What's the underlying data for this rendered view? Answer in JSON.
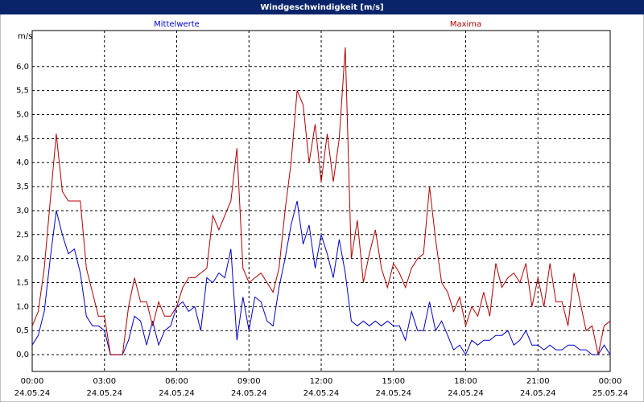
{
  "chart_data": {
    "type": "line",
    "title": "Windgeschwindigkeit [m/s]",
    "y_label": "m/s",
    "x": [
      0,
      0.25,
      0.5,
      0.75,
      1,
      1.25,
      1.5,
      1.75,
      2,
      2.25,
      2.5,
      2.75,
      3,
      3.25,
      3.5,
      3.75,
      4,
      4.25,
      4.5,
      4.75,
      5,
      5.25,
      5.5,
      5.75,
      6,
      6.25,
      6.5,
      6.75,
      7,
      7.25,
      7.5,
      7.75,
      8,
      8.25,
      8.5,
      8.75,
      9,
      9.25,
      9.5,
      9.75,
      10,
      10.25,
      10.5,
      10.75,
      11,
      11.25,
      11.5,
      11.75,
      12,
      12.25,
      12.5,
      12.75,
      13,
      13.25,
      13.5,
      13.75,
      14,
      14.25,
      14.5,
      14.75,
      15,
      15.25,
      15.5,
      15.75,
      16,
      16.25,
      16.5,
      16.75,
      17,
      17.25,
      17.5,
      17.75,
      18,
      18.25,
      18.5,
      18.75,
      19,
      19.25,
      19.5,
      19.75,
      20,
      20.25,
      20.5,
      20.75,
      21,
      21.25,
      21.5,
      21.75,
      22,
      22.25,
      22.5,
      22.75,
      23,
      23.25,
      23.5,
      23.75,
      24
    ],
    "series": [
      {
        "name": "Mittelwerte",
        "color": "#0000cc",
        "values": [
          0.2,
          0.4,
          0.9,
          2.0,
          3.0,
          2.5,
          2.1,
          2.2,
          1.7,
          0.8,
          0.6,
          0.6,
          0.5,
          0.0,
          0.0,
          0.0,
          0.3,
          0.8,
          0.7,
          0.2,
          0.7,
          0.2,
          0.5,
          0.6,
          1.0,
          1.1,
          0.9,
          1.0,
          0.5,
          1.6,
          1.5,
          1.7,
          1.6,
          2.2,
          0.3,
          1.2,
          0.5,
          1.2,
          1.1,
          0.7,
          0.6,
          1.4,
          2.0,
          2.7,
          3.2,
          2.3,
          2.7,
          1.8,
          2.5,
          2.1,
          1.6,
          2.4,
          1.7,
          0.7,
          0.6,
          0.7,
          0.6,
          0.7,
          0.6,
          0.7,
          0.6,
          0.6,
          0.3,
          0.9,
          0.5,
          0.5,
          1.1,
          0.5,
          0.7,
          0.4,
          0.1,
          0.2,
          0.0,
          0.3,
          0.2,
          0.3,
          0.3,
          0.4,
          0.4,
          0.5,
          0.2,
          0.3,
          0.5,
          0.2,
          0.2,
          0.1,
          0.2,
          0.1,
          0.1,
          0.2,
          0.2,
          0.1,
          0.1,
          0.0,
          0.0,
          0.2,
          0.0
        ]
      },
      {
        "name": "Maxima",
        "color": "#b00000",
        "values": [
          0.6,
          0.9,
          1.8,
          3.2,
          4.6,
          3.4,
          3.2,
          3.2,
          3.2,
          1.8,
          1.3,
          0.8,
          0.8,
          0.0,
          0.0,
          0.0,
          1.0,
          1.6,
          1.1,
          1.1,
          0.6,
          1.1,
          0.8,
          0.8,
          1.0,
          1.4,
          1.6,
          1.6,
          1.7,
          1.8,
          2.9,
          2.6,
          2.9,
          3.2,
          4.3,
          1.8,
          1.5,
          1.6,
          1.7,
          1.5,
          1.3,
          1.8,
          3.0,
          4.0,
          5.5,
          5.2,
          4.0,
          4.8,
          3.6,
          4.6,
          3.6,
          4.5,
          6.4,
          2.0,
          2.8,
          1.5,
          2.1,
          2.6,
          1.8,
          1.4,
          1.9,
          1.7,
          1.4,
          1.8,
          2.0,
          2.1,
          3.5,
          2.4,
          1.5,
          1.3,
          0.9,
          1.2,
          0.6,
          1.0,
          0.8,
          1.3,
          0.8,
          1.9,
          1.4,
          1.6,
          1.7,
          1.5,
          1.9,
          1.0,
          1.6,
          1.0,
          1.9,
          1.1,
          1.1,
          0.6,
          1.7,
          1.1,
          0.5,
          0.6,
          0.0,
          0.6,
          0.7
        ]
      }
    ],
    "xlim": [
      0,
      24
    ],
    "xticks": [
      {
        "value": 0,
        "label": "00:00",
        "date": "24.05.24"
      },
      {
        "value": 3,
        "label": "03:00",
        "date": "24.05.24"
      },
      {
        "value": 6,
        "label": "06:00",
        "date": "24.05.24"
      },
      {
        "value": 9,
        "label": "09:00",
        "date": "24.05.24"
      },
      {
        "value": 12,
        "label": "12:00",
        "date": "24.05.24"
      },
      {
        "value": 15,
        "label": "15:00",
        "date": "24.05.24"
      },
      {
        "value": 18,
        "label": "18:00",
        "date": "24.05.24"
      },
      {
        "value": 21,
        "label": "21:00",
        "date": "24.05.24"
      },
      {
        "value": 24,
        "label": "00:00",
        "date": "25.05.24"
      }
    ],
    "ylim": [
      -0.35,
      6.75
    ],
    "yticks": [
      {
        "value": 0,
        "label": "0,0"
      },
      {
        "value": 0.5,
        "label": "0,5"
      },
      {
        "value": 1,
        "label": "1,0"
      },
      {
        "value": 1.5,
        "label": "1,5"
      },
      {
        "value": 2,
        "label": "2,0"
      },
      {
        "value": 2.5,
        "label": "2,5"
      },
      {
        "value": 3,
        "label": "3,0"
      },
      {
        "value": 3.5,
        "label": "3,5"
      },
      {
        "value": 4,
        "label": "4,0"
      },
      {
        "value": 4.5,
        "label": "4,5"
      },
      {
        "value": 5,
        "label": "5,0"
      },
      {
        "value": 5.5,
        "label": "5,5"
      },
      {
        "value": 6,
        "label": "6,0"
      }
    ],
    "grid": true
  }
}
